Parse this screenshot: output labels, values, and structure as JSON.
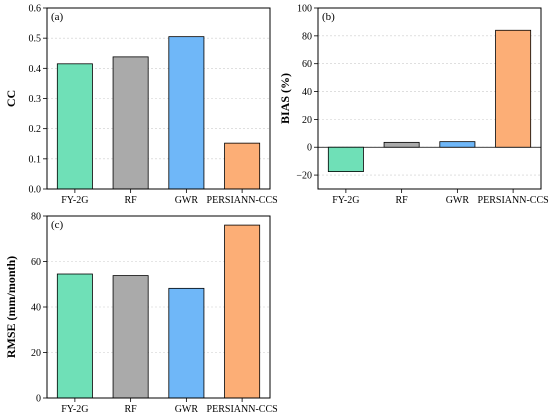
{
  "colors": {
    "fy2g": "#6fe0b7",
    "rf": "#aaaaaa",
    "gwr": "#6fb7f8",
    "persiann": "#fcae76",
    "gridline": "#cccccc"
  },
  "chart_data": [
    {
      "type": "bar",
      "panel_label": "(a)",
      "categories": [
        "FY-2G",
        "RF",
        "GWR",
        "PERSIANN-CCS"
      ],
      "values": [
        0.415,
        0.438,
        0.505,
        0.152
      ],
      "ylabel": "CC",
      "ylim": [
        0.0,
        0.6
      ],
      "yticks": [
        0.0,
        0.1,
        0.2,
        0.3,
        0.4,
        0.5,
        0.6
      ],
      "ytick_labels": [
        "0.0",
        "0.1",
        "0.2",
        "0.3",
        "0.4",
        "0.5",
        "0.6"
      ],
      "grid": true
    },
    {
      "type": "bar",
      "panel_label": "(b)",
      "categories": [
        "FY-2G",
        "RF",
        "GWR",
        "PERSIANN-CCS"
      ],
      "values": [
        -17.5,
        3.5,
        4.0,
        84.0
      ],
      "ylabel": "BIAS (%)",
      "ylim": [
        -30,
        100
      ],
      "yticks": [
        -20,
        0,
        20,
        40,
        60,
        80,
        100
      ],
      "ytick_labels": [
        "−20",
        "0",
        "20",
        "40",
        "60",
        "80",
        "100"
      ],
      "grid": true
    },
    {
      "type": "bar",
      "panel_label": "(c)",
      "categories": [
        "FY-2G",
        "RF",
        "GWR",
        "PERSIANN-CCS"
      ],
      "values": [
        54.5,
        53.8,
        48.2,
        76.0
      ],
      "ylabel": "RMSE (mm/month)",
      "ylim": [
        0,
        80
      ],
      "yticks": [
        0,
        20,
        40,
        60,
        80
      ],
      "ytick_labels": [
        "0",
        "20",
        "40",
        "60",
        "80"
      ],
      "grid": true
    }
  ]
}
